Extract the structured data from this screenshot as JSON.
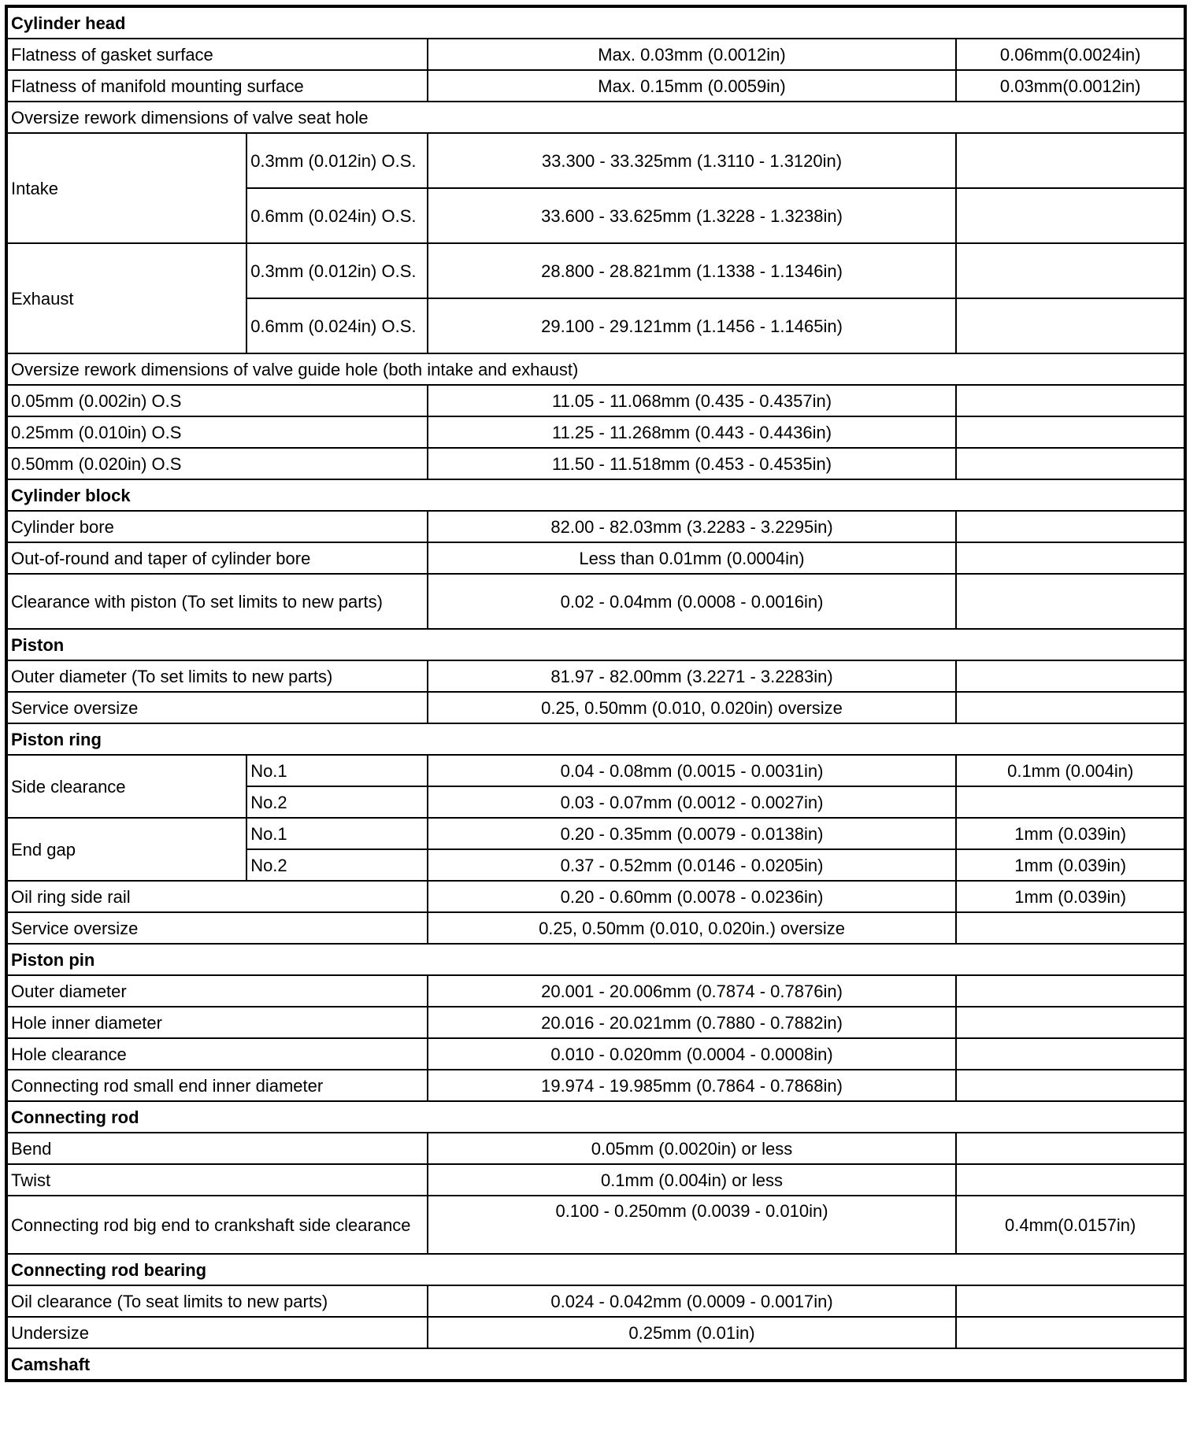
{
  "rows": [
    {
      "type": "section",
      "label": "Cylinder head"
    },
    {
      "type": "item",
      "label": "Flatness of gasket surface",
      "value": "Max. 0.03mm (0.0012in)",
      "limit": "0.06mm(0.0024in)"
    },
    {
      "type": "item",
      "label": "Flatness of manifold mounting surface",
      "value": "Max. 0.15mm (0.0059in)",
      "limit": "0.03mm(0.0012in)"
    },
    {
      "type": "heading",
      "label": "Oversize rework dimensions of valve seat hole"
    },
    {
      "type": "group",
      "label": "Intake",
      "tall": true,
      "items": [
        {
          "sub": "0.3mm (0.012in) O.S.",
          "value": "33.300 - 33.325mm (1.3110 - 1.3120in)",
          "limit": ""
        },
        {
          "sub": "0.6mm (0.024in) O.S.",
          "value": "33.600 - 33.625mm (1.3228 - 1.3238in)",
          "limit": ""
        }
      ]
    },
    {
      "type": "group",
      "label": "Exhaust",
      "tall": true,
      "items": [
        {
          "sub": "0.3mm (0.012in) O.S.",
          "value": "28.800 - 28.821mm (1.1338 - 1.1346in)",
          "limit": ""
        },
        {
          "sub": "0.6mm (0.024in) O.S.",
          "value": "29.100 - 29.121mm (1.1456 - 1.1465in)",
          "limit": ""
        }
      ]
    },
    {
      "type": "heading",
      "label": "Oversize rework dimensions of valve guide hole (both intake and exhaust)"
    },
    {
      "type": "item",
      "label": "0.05mm (0.002in) O.S",
      "value": "11.05 - 11.068mm (0.435 - 0.4357in)",
      "limit": ""
    },
    {
      "type": "item",
      "label": "0.25mm (0.010in) O.S",
      "value": "11.25 - 11.268mm (0.443 - 0.4436in)",
      "limit": ""
    },
    {
      "type": "item",
      "label": "0.50mm (0.020in) O.S",
      "value": "11.50 - 11.518mm (0.453 - 0.4535in)",
      "limit": ""
    },
    {
      "type": "section",
      "label": "Cylinder block"
    },
    {
      "type": "item",
      "label": "Cylinder bore",
      "value": "82.00 - 82.03mm (3.2283 - 3.2295in)",
      "limit": ""
    },
    {
      "type": "item",
      "label": "Out-of-round and taper of cylinder bore",
      "value": "Less than 0.01mm (0.0004in)",
      "limit": ""
    },
    {
      "type": "item",
      "label": "Clearance with piston (To set limits to new parts)",
      "value": "0.02 - 0.04mm (0.0008 - 0.0016in)",
      "limit": "",
      "tall": true
    },
    {
      "type": "section",
      "label": "Piston"
    },
    {
      "type": "item",
      "label": "Outer diameter (To set limits to new parts)",
      "value": "81.97 - 82.00mm (3.2271 - 3.2283in)",
      "limit": ""
    },
    {
      "type": "item",
      "label": "Service oversize",
      "value": "0.25, 0.50mm (0.010, 0.020in) oversize",
      "limit": ""
    },
    {
      "type": "section",
      "label": "Piston ring"
    },
    {
      "type": "group",
      "label": "Side clearance",
      "items": [
        {
          "sub": "No.1",
          "value": "0.04 - 0.08mm (0.0015 - 0.0031in)",
          "limit": "0.1mm (0.004in)"
        },
        {
          "sub": "No.2",
          "value": "0.03 - 0.07mm (0.0012 - 0.0027in)",
          "limit": ""
        }
      ]
    },
    {
      "type": "group",
      "label": "End gap",
      "items": [
        {
          "sub": "No.1",
          "value": "0.20 - 0.35mm (0.0079 - 0.0138in)",
          "limit": "1mm (0.039in)"
        },
        {
          "sub": "No.2",
          "value": "0.37 - 0.52mm (0.0146 - 0.0205in)",
          "limit": "1mm (0.039in)"
        }
      ]
    },
    {
      "type": "item",
      "label": "Oil ring side rail",
      "value": "0.20 - 0.60mm (0.0078 - 0.0236in)",
      "limit": "1mm (0.039in)"
    },
    {
      "type": "item",
      "label": "Service oversize",
      "value": "0.25, 0.50mm (0.010, 0.020in.) oversize",
      "limit": ""
    },
    {
      "type": "section",
      "label": "Piston pin"
    },
    {
      "type": "item",
      "label": "Outer diameter",
      "value": "20.001 - 20.006mm (0.7874 - 0.7876in)",
      "limit": ""
    },
    {
      "type": "item",
      "label": "Hole inner diameter",
      "value": "20.016 - 20.021mm (0.7880 - 0.7882in)",
      "limit": ""
    },
    {
      "type": "item",
      "label": "Hole clearance",
      "value": "0.010 - 0.020mm (0.0004 - 0.0008in)",
      "limit": ""
    },
    {
      "type": "item",
      "label": "Connecting rod small end inner diameter",
      "value": "19.974 - 19.985mm (0.7864 - 0.7868in)",
      "limit": ""
    },
    {
      "type": "section",
      "label": "Connecting rod"
    },
    {
      "type": "item",
      "label": "Bend",
      "value": "0.05mm (0.0020in) or less",
      "limit": ""
    },
    {
      "type": "item",
      "label": "Twist",
      "value": "0.1mm (0.004in) or less",
      "limit": ""
    },
    {
      "type": "item",
      "label": "Connecting rod big end to crankshaft side clearance",
      "value": "0.100 - 0.250mm (0.0039 - 0.010in)",
      "limit": "0.4mm(0.0157in)",
      "tall": true,
      "valueTop": true
    },
    {
      "type": "section",
      "label": "Connecting rod bearing"
    },
    {
      "type": "item",
      "label": "Oil clearance (To seat limits to new parts)",
      "value": "0.024 - 0.042mm (0.0009 - 0.0017in)",
      "limit": ""
    },
    {
      "type": "item",
      "label": "Undersize",
      "value": "0.25mm (0.01in)",
      "limit": ""
    },
    {
      "type": "section",
      "label": "Camshaft"
    }
  ]
}
